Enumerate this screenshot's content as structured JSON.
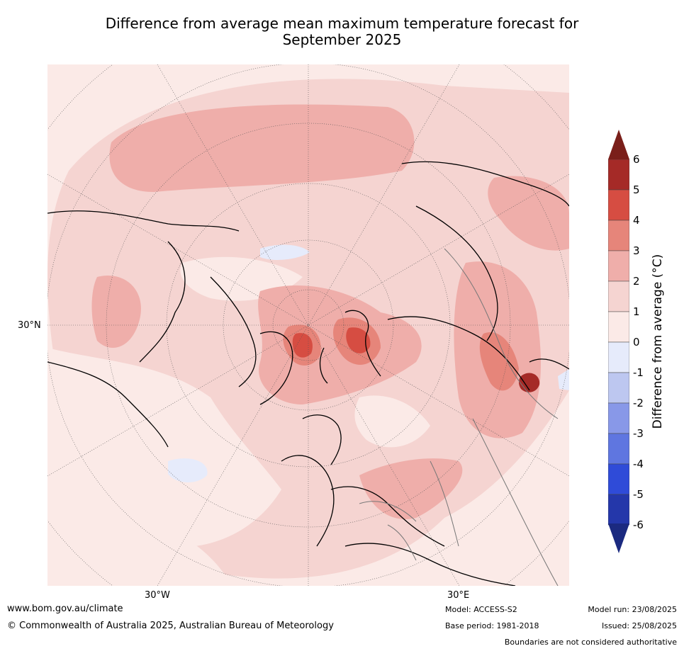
{
  "title_line1": "Difference from average mean maximum temperature forecast for",
  "title_line2": "September 2025",
  "map": {
    "lon_labels": [
      "30°W",
      "30°E"
    ],
    "lat_label": "30°N"
  },
  "colorbar": {
    "label": "Difference from average (°C)",
    "ticks": [
      "6",
      "5",
      "4",
      "3",
      "2",
      "1",
      "0",
      "-1",
      "-2",
      "-3",
      "-4",
      "-5",
      "-6"
    ],
    "colors": [
      "#a52a27",
      "#d64d42",
      "#e6857a",
      "#efaeaa",
      "#f5d4d1",
      "#fbeae7",
      "#e6ebfb",
      "#bdc7f0",
      "#8898e8",
      "#5f76e0",
      "#2f4bd8",
      "#2437aa"
    ],
    "over_color": "#7a1f1a",
    "under_color": "#1b2a80"
  },
  "footer": {
    "website": "www.bom.gov.au/climate",
    "copyright": "© Commonwealth of Australia 2025, Australian Bureau of Meteorology",
    "model": "Model: ACCESS-S2",
    "base_period": "Base period: 1981-2018",
    "model_run": "Model run: 23/08/2025",
    "issued": "Issued: 25/08/2025",
    "disclaimer": "Boundaries are not considered authoritative"
  }
}
